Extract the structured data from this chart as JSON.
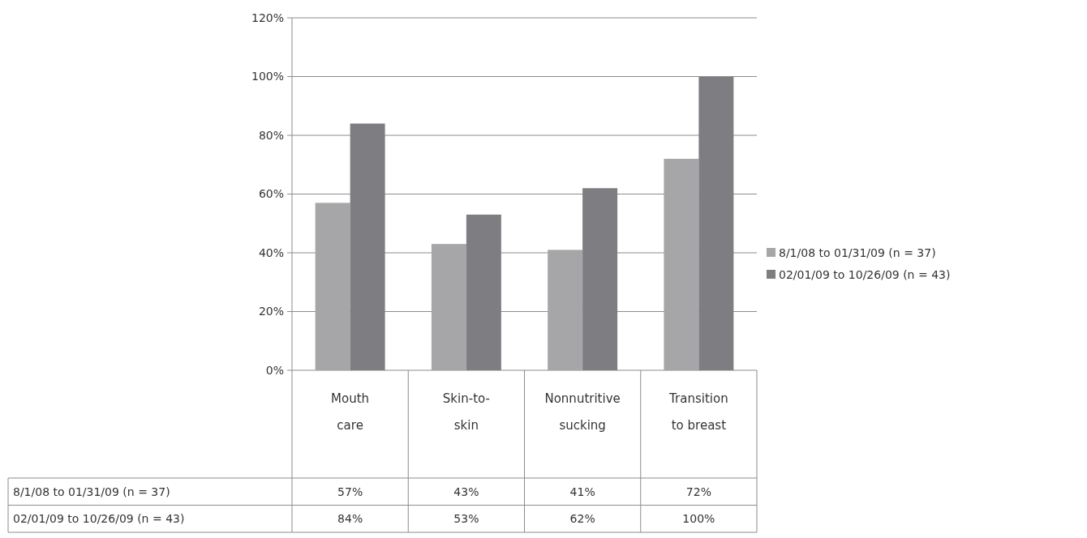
{
  "chart_data": {
    "type": "bar",
    "categories": [
      "Mouth care",
      "Skin-to-skin",
      "Nonnutritive sucking",
      "Transition to breast"
    ],
    "series": [
      {
        "name": "8/1/08 to 01/31/09 (n = 37)",
        "color": "#a6a6a8",
        "values": [
          57,
          43,
          41,
          72
        ],
        "value_labels": [
          "57%",
          "43%",
          "41%",
          "72%"
        ]
      },
      {
        "name": "02/01/09 to 10/26/09 (n = 43)",
        "color": "#7e7e82",
        "values": [
          84,
          53,
          62,
          100
        ],
        "value_labels": [
          "84%",
          "53%",
          "62%",
          "100%"
        ]
      }
    ],
    "ylim": [
      0,
      120
    ],
    "yticks": [
      {
        "value": 0,
        "label": "0%"
      },
      {
        "value": 20,
        "label": "20%"
      },
      {
        "value": 40,
        "label": "40%"
      },
      {
        "value": 60,
        "label": "60%"
      },
      {
        "value": 80,
        "label": "80%"
      },
      {
        "value": 100,
        "label": "100%"
      },
      {
        "value": 120,
        "label": "120%"
      }
    ],
    "grid": "y",
    "legend": "right"
  }
}
